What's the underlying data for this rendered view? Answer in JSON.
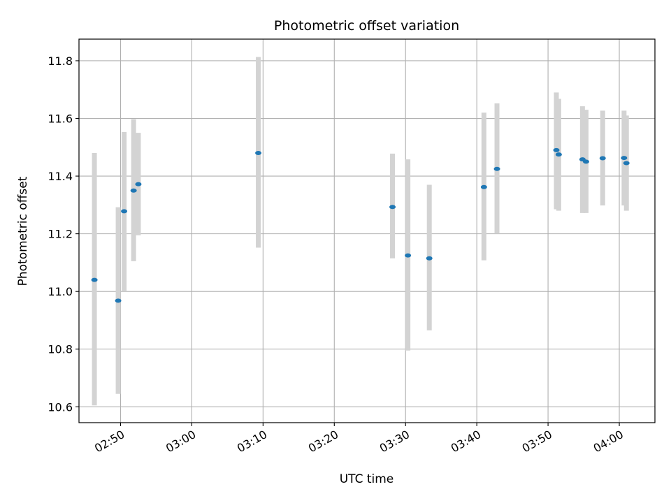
{
  "chart_data": {
    "type": "scatter",
    "title": "Photometric offset variation",
    "xlabel": "UTC time",
    "ylabel": "Photometric offset",
    "xlim": [
      "02:44:10",
      "04:05:00"
    ],
    "ylim": [
      10.545,
      11.875
    ],
    "grid": true,
    "x_ticks": [
      "02:50",
      "03:00",
      "03:10",
      "03:20",
      "03:30",
      "03:40",
      "03:50",
      "04:00"
    ],
    "y_ticks": [
      "10.6",
      "10.8",
      "11.0",
      "11.2",
      "11.4",
      "11.6",
      "11.8"
    ],
    "points": [
      {
        "x": "02:46:20",
        "y": 11.04,
        "ylow": 10.605,
        "yhigh": 11.48
      },
      {
        "x": "02:49:40",
        "y": 10.968,
        "ylow": 10.645,
        "yhigh": 11.292
      },
      {
        "x": "02:50:30",
        "y": 11.278,
        "ylow": 11.0,
        "yhigh": 11.553
      },
      {
        "x": "02:51:50",
        "y": 11.35,
        "ylow": 11.105,
        "yhigh": 11.597
      },
      {
        "x": "02:52:30",
        "y": 11.372,
        "ylow": 11.195,
        "yhigh": 11.55
      },
      {
        "x": "03:09:20",
        "y": 11.48,
        "ylow": 11.152,
        "yhigh": 11.813
      },
      {
        "x": "03:28:10",
        "y": 11.293,
        "ylow": 11.115,
        "yhigh": 11.478
      },
      {
        "x": "03:30:20",
        "y": 11.125,
        "ylow": 10.795,
        "yhigh": 11.458
      },
      {
        "x": "03:33:20",
        "y": 11.115,
        "ylow": 10.865,
        "yhigh": 11.37
      },
      {
        "x": "03:41:00",
        "y": 11.362,
        "ylow": 11.108,
        "yhigh": 11.62
      },
      {
        "x": "03:42:50",
        "y": 11.425,
        "ylow": 11.2,
        "yhigh": 11.652
      },
      {
        "x": "03:51:10",
        "y": 11.49,
        "ylow": 11.285,
        "yhigh": 11.69
      },
      {
        "x": "03:51:30",
        "y": 11.475,
        "ylow": 11.28,
        "yhigh": 11.668
      },
      {
        "x": "03:54:50",
        "y": 11.458,
        "ylow": 11.272,
        "yhigh": 11.642
      },
      {
        "x": "03:55:20",
        "y": 11.45,
        "ylow": 11.272,
        "yhigh": 11.63
      },
      {
        "x": "03:57:40",
        "y": 11.462,
        "ylow": 11.298,
        "yhigh": 11.627
      },
      {
        "x": "04:00:40",
        "y": 11.463,
        "ylow": 11.298,
        "yhigh": 11.627
      },
      {
        "x": "04:01:00",
        "y": 11.445,
        "ylow": 11.28,
        "yhigh": 11.61
      }
    ],
    "colors": {
      "point": "#1f77b4",
      "errorbar": "#d3d3d3",
      "grid": "#b0b0b0",
      "axes": "#000000"
    }
  }
}
